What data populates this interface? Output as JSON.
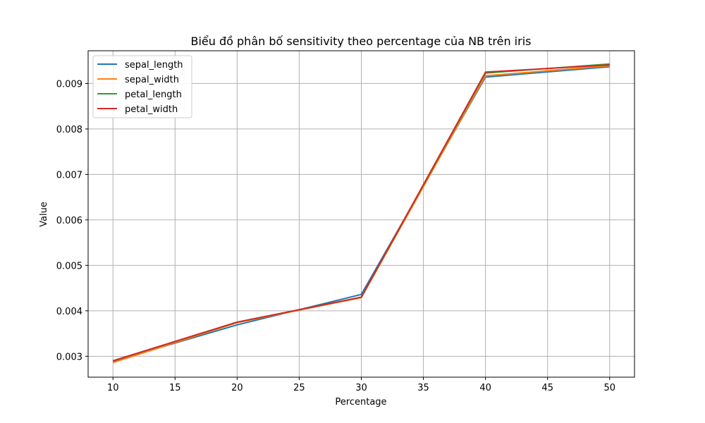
{
  "chart_data": {
    "type": "line",
    "title": "Biểu đồ phân bố sensitivity theo percentage của NB trên iris",
    "xlabel": "Percentage",
    "ylabel": "Value",
    "x": [
      10,
      20,
      30,
      40,
      50
    ],
    "xlim": [
      8,
      52
    ],
    "ylim": [
      0.00254,
      0.00972
    ],
    "xticks": [
      "10",
      "15",
      "20",
      "25",
      "30",
      "35",
      "40",
      "45",
      "50"
    ],
    "yticks": [
      "0.003",
      "0.004",
      "0.005",
      "0.006",
      "0.007",
      "0.008",
      "0.009"
    ],
    "grid": true,
    "legend_position": "top-left",
    "series": [
      {
        "name": "sepal_length",
        "color": "#1f77b4",
        "values": [
          0.00289,
          0.00369,
          0.00436,
          0.00914,
          0.00937
        ]
      },
      {
        "name": "sepal_width",
        "color": "#ff7f0e",
        "values": [
          0.00286,
          0.00374,
          0.00429,
          0.00917,
          0.00939
        ]
      },
      {
        "name": "petal_length",
        "color": "#2ca02c",
        "values": [
          0.0029,
          0.00375,
          0.0043,
          0.00923,
          0.00943
        ]
      },
      {
        "name": "petal_width",
        "color": "#d62728",
        "values": [
          0.0029,
          0.00375,
          0.0043,
          0.00925,
          0.00941
        ]
      }
    ]
  }
}
